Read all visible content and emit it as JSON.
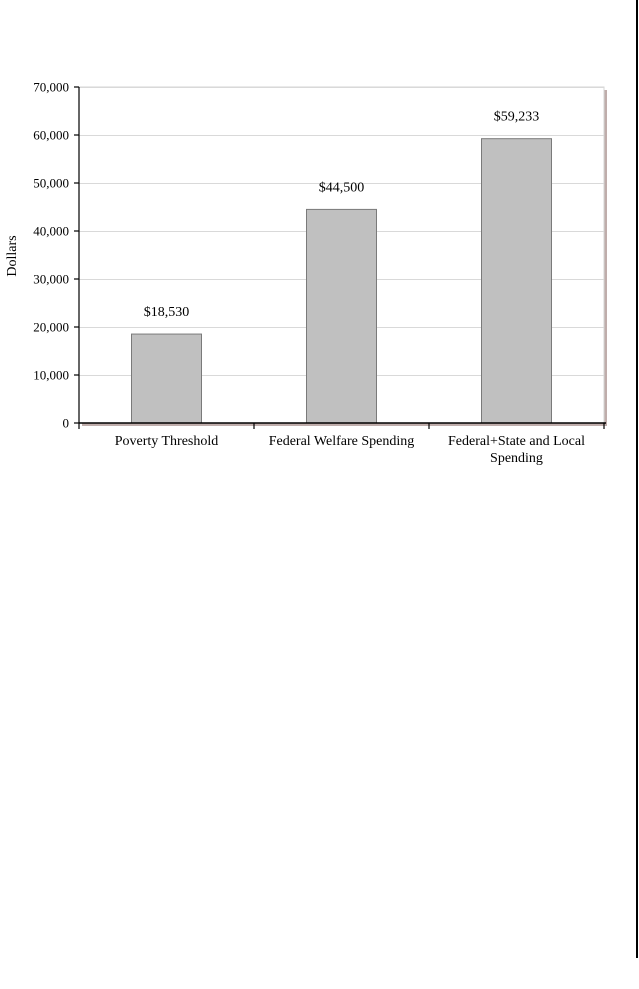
{
  "chart_data": {
    "type": "bar",
    "title": "",
    "xlabel": "",
    "ylabel": "Dollars",
    "ylim": [
      0,
      70000
    ],
    "y_ticks": [
      0,
      10000,
      20000,
      30000,
      40000,
      50000,
      60000,
      70000
    ],
    "y_tick_labels": [
      "0",
      "10,000",
      "20,000",
      "30,000",
      "40,000",
      "50,000",
      "60,000",
      "70,000"
    ],
    "categories": [
      [
        "Poverty Threshold"
      ],
      [
        "Federal Welfare Spending"
      ],
      [
        "Federal+State and Local",
        "Spending"
      ]
    ],
    "values": [
      18530,
      44500,
      59233
    ],
    "data_labels": [
      "$18,530",
      "$44,500",
      "$59,233"
    ],
    "grid": true,
    "legend": "none",
    "colors": {
      "bar_fill": "#c0c0c0",
      "bar_stroke": "#7a7a7a",
      "grid": "#d9d9d9",
      "axis": "#000000",
      "plot_shadow": "#8a6a66"
    }
  }
}
